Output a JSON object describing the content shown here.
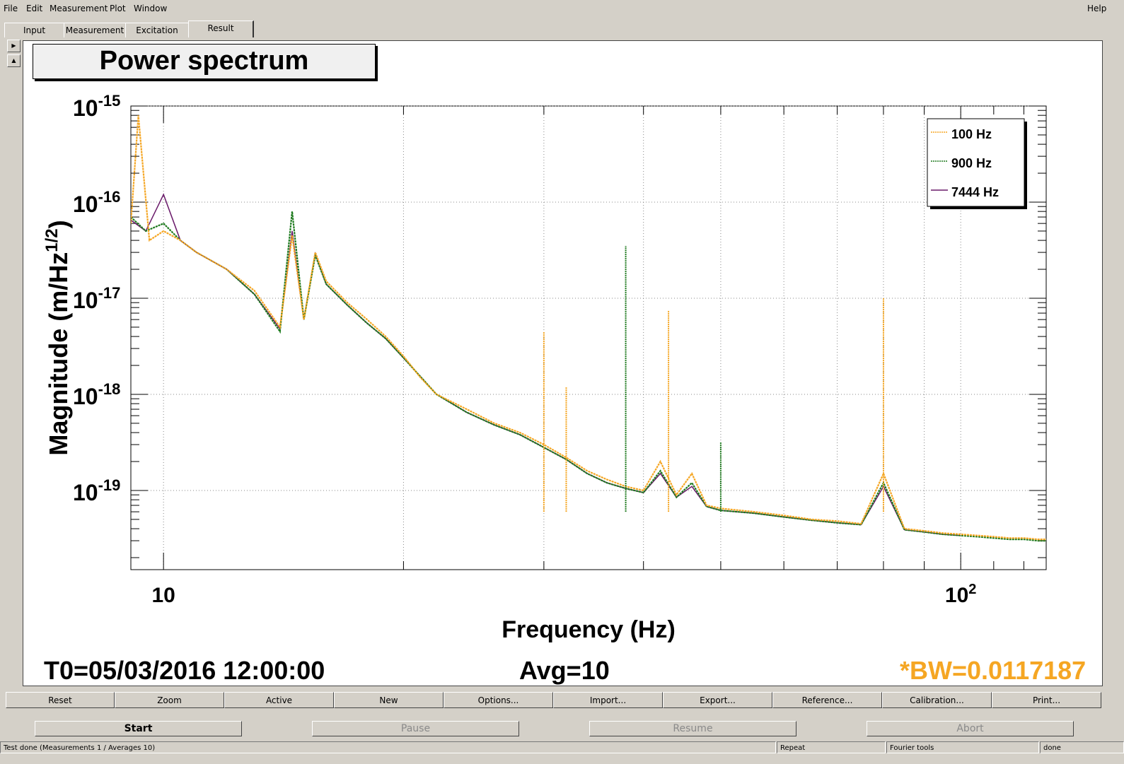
{
  "menu": {
    "file": "File",
    "edit": "Edit",
    "measurement": "Measurement",
    "plot": "Plot",
    "window": "Window",
    "help": "Help"
  },
  "tabs": [
    "Input",
    "Measurement",
    "Excitation",
    "Result"
  ],
  "active_tab": "Result",
  "colors": {
    "series_100": "#f5a623",
    "series_900": "#1e7a1e",
    "series_7444": "#6a1a6a",
    "bw_text": "#f5a623"
  },
  "chart_data": {
    "type": "line",
    "title": "Power spectrum",
    "xlabel": "Frequency (Hz)",
    "ylabel": "Magnitude (m/Hz",
    "ylabel_sup": "1/2",
    "ylabel_close": ")",
    "x_scale": "log",
    "y_scale": "log",
    "xlim": [
      9.1,
      128
    ],
    "ylim": [
      1.5e-20,
      1e-15
    ],
    "grid": true,
    "x_ticks": [
      {
        "value": 10,
        "label": "10",
        "sup": ""
      },
      {
        "value": 100,
        "label": "10",
        "sup": "2"
      }
    ],
    "y_ticks": [
      {
        "value": 1e-15,
        "label": "10",
        "sup": "-15"
      },
      {
        "value": 1e-16,
        "label": "10",
        "sup": "-16"
      },
      {
        "value": 1e-17,
        "label": "10",
        "sup": "-17"
      },
      {
        "value": 1e-18,
        "label": "10",
        "sup": "-18"
      },
      {
        "value": 1e-19,
        "label": "10",
        "sup": "-19"
      }
    ],
    "legend": {
      "placement": "top-right",
      "entries": [
        "100 Hz",
        "900 Hz",
        "7444 Hz"
      ]
    },
    "series": [
      {
        "name": "100 Hz",
        "style": "dotted",
        "x": [
          9.1,
          9.3,
          9.6,
          10,
          10.5,
          11,
          12,
          13,
          14,
          14.5,
          15,
          15.5,
          16,
          17,
          18,
          19,
          20,
          21,
          22,
          24,
          26,
          28,
          30,
          32,
          34,
          36,
          38,
          40,
          42,
          44,
          46,
          48,
          50,
          55,
          60,
          65,
          70,
          75,
          80,
          85,
          90,
          95,
          100,
          105,
          110,
          115,
          120,
          125,
          128
        ],
        "y": [
          6e-17,
          8e-16,
          4e-17,
          5e-17,
          4e-17,
          3e-17,
          2e-17,
          1.2e-17,
          5e-18,
          4.5e-17,
          6e-18,
          3e-17,
          1.5e-17,
          9e-18,
          6e-18,
          4e-18,
          2.5e-18,
          1.5e-18,
          1e-18,
          7e-19,
          5e-19,
          4e-19,
          3e-19,
          2.2e-19,
          1.6e-19,
          1.3e-19,
          1.1e-19,
          1e-19,
          2e-19,
          9e-20,
          1.5e-19,
          7e-20,
          6.5e-20,
          6e-20,
          5.5e-20,
          5e-20,
          4.8e-20,
          4.5e-20,
          1.5e-19,
          4e-20,
          3.8e-20,
          3.6e-20,
          3.5e-20,
          3.4e-20,
          3.3e-20,
          3.2e-20,
          3.2e-20,
          3.1e-20,
          3.1e-20
        ]
      },
      {
        "name": "900 Hz",
        "style": "dotted",
        "x": [
          9.1,
          9.5,
          10,
          10.5,
          11,
          12,
          13,
          14,
          14.5,
          15,
          15.5,
          16,
          17,
          18,
          19,
          20,
          22,
          24,
          26,
          28,
          30,
          32,
          34,
          36,
          38,
          40,
          42,
          44,
          46,
          48,
          50,
          55,
          60,
          65,
          70,
          75,
          80,
          85,
          90,
          95,
          100,
          105,
          110,
          115,
          120,
          125,
          128
        ],
        "y": [
          7e-17,
          5e-17,
          6e-17,
          4e-17,
          3e-17,
          2e-17,
          1.1e-17,
          4.5e-18,
          8e-17,
          6e-18,
          2.8e-17,
          1.4e-17,
          8.5e-18,
          5.5e-18,
          3.8e-18,
          2.4e-18,
          1e-18,
          6.5e-19,
          4.8e-19,
          3.8e-19,
          2.8e-19,
          2.1e-19,
          1.5e-19,
          1.2e-19,
          1.05e-19,
          9.5e-20,
          1.6e-19,
          8.5e-20,
          1.2e-19,
          6.8e-20,
          6.2e-20,
          5.8e-20,
          5.3e-20,
          4.9e-20,
          4.6e-20,
          4.4e-20,
          1.2e-19,
          3.9e-20,
          3.7e-20,
          3.5e-20,
          3.4e-20,
          3.3e-20,
          3.2e-20,
          3.1e-20,
          3.1e-20,
          3e-20,
          3e-20
        ]
      },
      {
        "name": "7444 Hz",
        "style": "solid",
        "x": [
          9.1,
          9.5,
          10,
          10.5,
          11,
          12,
          13,
          14,
          14.5,
          15,
          15.5,
          16,
          17,
          18,
          19,
          20,
          22,
          24,
          26,
          28,
          30,
          32,
          34,
          36,
          38,
          40,
          42,
          44,
          46,
          48,
          50,
          55,
          60,
          65,
          70,
          75,
          80,
          85,
          90,
          95,
          100
        ],
        "y": [
          6.5e-17,
          5e-17,
          1.2e-16,
          4e-17,
          3e-17,
          2e-17,
          1.1e-17,
          4.8e-18,
          5e-17,
          6e-18,
          2.9e-17,
          1.4e-17,
          8.5e-18,
          5.5e-18,
          3.8e-18,
          2.4e-18,
          1e-18,
          6.5e-19,
          4.8e-19,
          3.8e-19,
          2.8e-19,
          2.1e-19,
          1.5e-19,
          1.2e-19,
          1.05e-19,
          9.5e-20,
          1.5e-19,
          8.5e-20,
          1.1e-19,
          6.8e-20,
          6.2e-20,
          5.8e-20,
          5.3e-20,
          4.9e-20,
          4.6e-20,
          4.4e-20,
          1.1e-19,
          3.9e-20,
          3.7e-20,
          3.5e-20,
          3.4e-20
        ]
      }
    ],
    "spikes": [
      {
        "series": "100 Hz",
        "x": 30,
        "y": 4.5e-18
      },
      {
        "series": "100 Hz",
        "x": 32,
        "y": 1.2e-18
      },
      {
        "series": "900 Hz",
        "x": 38,
        "y": 3.5e-17
      },
      {
        "series": "100 Hz",
        "x": 43,
        "y": 7.5e-18
      },
      {
        "series": "900 Hz",
        "x": 50,
        "y": 3.2e-19
      },
      {
        "series": "100 Hz",
        "x": 80,
        "y": 1e-17
      }
    ]
  },
  "footer": {
    "t0": "T0=05/03/2016 12:00:00",
    "avg": "Avg=10",
    "bw": "*BW=0.0117187"
  },
  "toolbar": [
    "Reset",
    "Zoom",
    "Active",
    "New",
    "Options...",
    "Import...",
    "Export...",
    "Reference...",
    "Calibration...",
    "Print..."
  ],
  "controls": {
    "start": "Start",
    "pause": "Pause",
    "resume": "Resume",
    "abort": "Abort"
  },
  "status": {
    "message": "Test done (Measurements 1 / Averages 10)",
    "repeat": "Repeat",
    "tool": "Fourier tools",
    "state": "done"
  }
}
